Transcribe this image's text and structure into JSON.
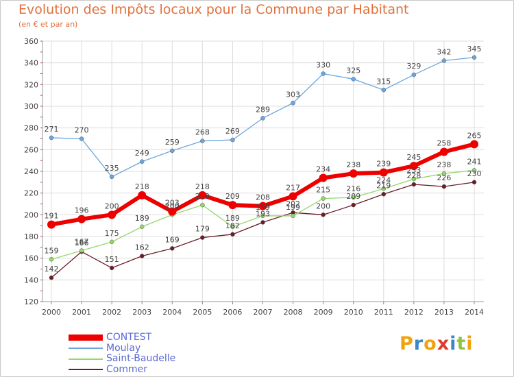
{
  "header": {
    "title": "Evolution des Impôts locaux pour la Commune par Habitant",
    "subtitle": "(en € et par an)"
  },
  "chart_data": {
    "type": "line",
    "title": "Evolution des Impôts locaux pour la Commune par Habitant",
    "subtitle": "(en € et par an)",
    "xlabel": "",
    "ylabel": "",
    "x": [
      "2000",
      "2001",
      "2002",
      "2003",
      "2004",
      "2005",
      "2006",
      "2007",
      "2008",
      "2009",
      "2010",
      "2011",
      "2012",
      "2013",
      "2014"
    ],
    "ylim": [
      120,
      360
    ],
    "yticks": [
      120,
      140,
      160,
      180,
      200,
      220,
      240,
      260,
      280,
      300,
      320,
      340,
      360
    ],
    "grid": true,
    "legend_position": "bottom-left",
    "series": [
      {
        "name": "Commer",
        "color": "#6b1c26",
        "values": [
          142,
          166,
          151,
          162,
          169,
          179,
          182,
          193,
          202,
          200,
          209,
          219,
          228,
          226,
          230
        ]
      },
      {
        "name": "Saint-Baudelle",
        "color": "#94d86a",
        "values": [
          159,
          167,
          175,
          189,
          200,
          209,
          189,
          199,
          199,
          215,
          216,
          224,
          233,
          238,
          241
        ]
      },
      {
        "name": "Moulay",
        "color": "#6ca6dc",
        "values": [
          271,
          270,
          235,
          249,
          259,
          268,
          269,
          289,
          303,
          330,
          325,
          315,
          329,
          342,
          345
        ]
      },
      {
        "name": "CONTEST",
        "color": "#ee0000",
        "values": [
          191,
          196,
          200,
          218,
          203,
          218,
          209,
          208,
          217,
          234,
          238,
          239,
          245,
          258,
          265
        ]
      }
    ]
  },
  "legend": {
    "items": [
      {
        "label": "CONTEST",
        "color": "#ee0000"
      },
      {
        "label": "Moulay",
        "color": "#6ca6dc"
      },
      {
        "label": "Saint-Baudelle",
        "color": "#94d86a"
      },
      {
        "label": "Commer",
        "color": "#6b1c26"
      }
    ]
  },
  "logo": {
    "text": "Proxiti",
    "letters": [
      "P",
      "r",
      "o",
      "x",
      "i",
      "t",
      "i"
    ],
    "colors": [
      "#f2a20c",
      "#3d86c6",
      "#f2a20c",
      "#e23a2c",
      "#3d86c6",
      "#8cc63f",
      "#f2a20c"
    ]
  }
}
